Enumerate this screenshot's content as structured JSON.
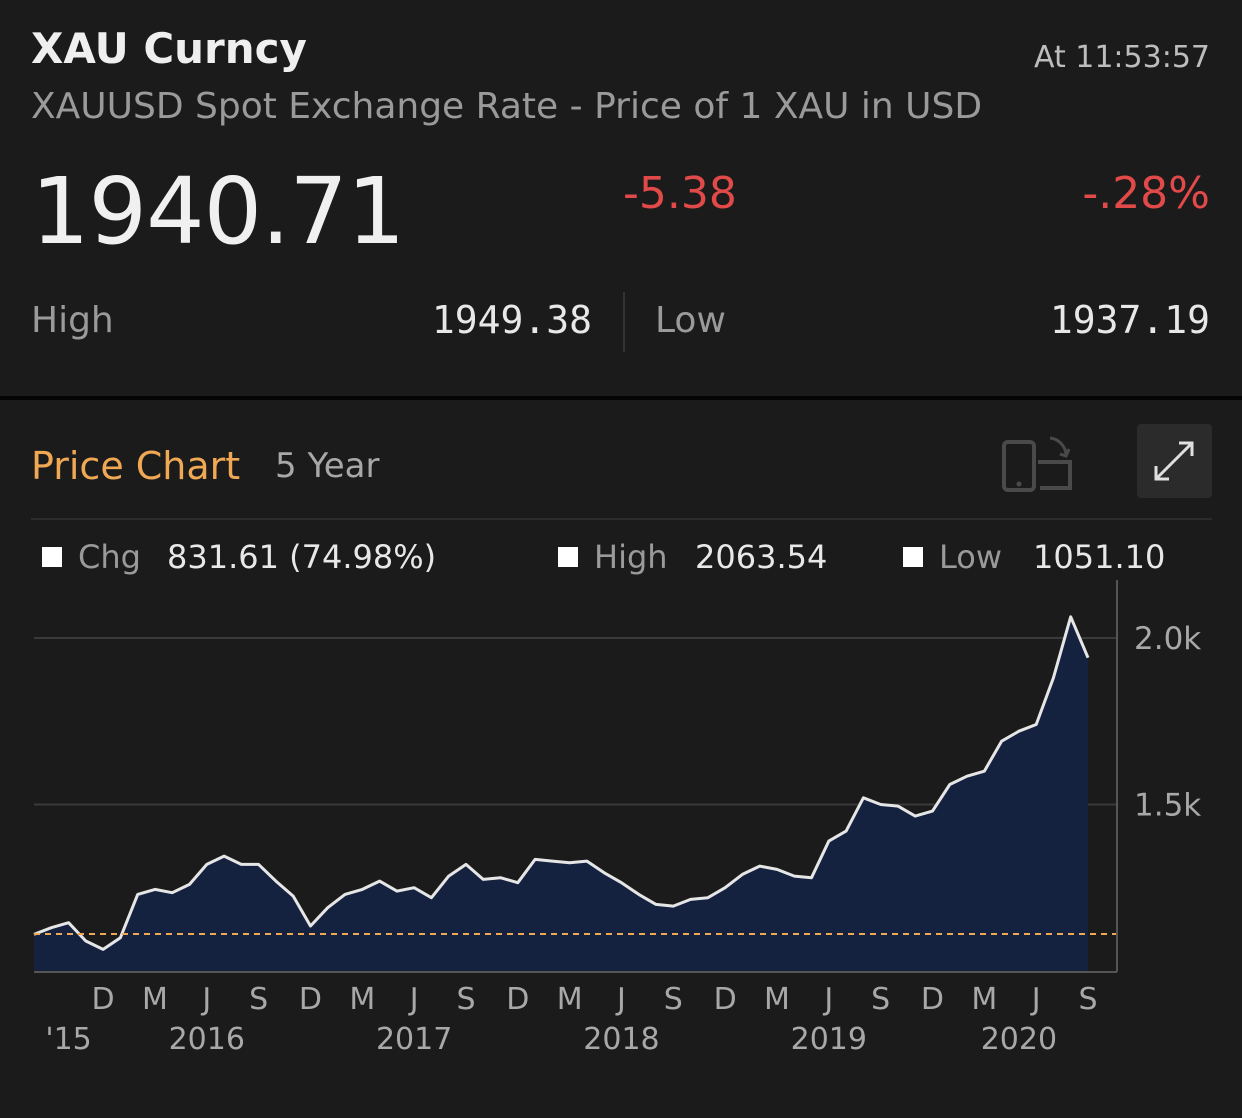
{
  "quote": {
    "ticker": "XAU Curncy",
    "time": "At 11:53:57",
    "description": "XAUUSD Spot Exchange Rate - Price of 1 XAU in USD",
    "last_price": "1940.71",
    "net_change": "-5.38",
    "pct_change": "-.28%",
    "high_label": "High",
    "high_value": "1949.38",
    "low_label": "Low",
    "low_value": "1937.19"
  },
  "chart_header": {
    "title": "Price Chart",
    "period": "5 Year",
    "rotate_icon": "rotate-device-icon",
    "expand_icon": "expand-icon"
  },
  "legend": {
    "chg_label": "Chg",
    "chg_value": "831.61 (74.98%)",
    "high_label": "High",
    "high_value": "2063.54",
    "low_label": "Low",
    "low_value": "1051.10"
  },
  "colors": {
    "accent": "#f0a855",
    "negative": "#e24a4a",
    "area_fill": "#14213f",
    "line": "#e6e6e6",
    "reference_line": "#f0a855"
  },
  "chart_data": {
    "type": "area",
    "x": [
      "2015-08",
      "2015-09",
      "2015-10",
      "2015-11",
      "2015-12",
      "2016-01",
      "2016-02",
      "2016-03",
      "2016-04",
      "2016-05",
      "2016-06",
      "2016-07",
      "2016-08",
      "2016-09",
      "2016-10",
      "2016-11",
      "2016-12",
      "2017-01",
      "2017-02",
      "2017-03",
      "2017-04",
      "2017-05",
      "2017-06",
      "2017-07",
      "2017-08",
      "2017-09",
      "2017-10",
      "2017-11",
      "2017-12",
      "2018-01",
      "2018-02",
      "2018-03",
      "2018-04",
      "2018-05",
      "2018-06",
      "2018-07",
      "2018-08",
      "2018-09",
      "2018-10",
      "2018-11",
      "2018-12",
      "2019-01",
      "2019-02",
      "2019-03",
      "2019-04",
      "2019-05",
      "2019-06",
      "2019-07",
      "2019-08",
      "2019-09",
      "2019-10",
      "2019-11",
      "2019-12",
      "2020-01",
      "2020-02",
      "2020-03",
      "2020-04",
      "2020-05",
      "2020-06",
      "2020-07",
      "2020-08",
      "2020-09"
    ],
    "values": [
      1110,
      1130,
      1145,
      1090,
      1065,
      1100,
      1230,
      1245,
      1235,
      1260,
      1320,
      1345,
      1320,
      1320,
      1270,
      1225,
      1135,
      1190,
      1230,
      1245,
      1270,
      1240,
      1250,
      1220,
      1285,
      1320,
      1275,
      1280,
      1265,
      1335,
      1330,
      1325,
      1330,
      1295,
      1265,
      1230,
      1200,
      1195,
      1215,
      1220,
      1250,
      1290,
      1315,
      1305,
      1285,
      1280,
      1390,
      1420,
      1520,
      1500,
      1495,
      1465,
      1480,
      1560,
      1585,
      1600,
      1690,
      1720,
      1740,
      1880,
      2063.54,
      1940.71
    ],
    "reference_value": 1111,
    "ylim": [
      1000,
      2150
    ],
    "yticks": [
      1500,
      2000
    ],
    "ytick_labels": [
      "1.5k",
      "2.0k"
    ],
    "xtick_months": [
      "D",
      "M",
      "J",
      "S",
      "D",
      "M",
      "J",
      "S",
      "D",
      "M",
      "J",
      "S",
      "D",
      "M",
      "J",
      "S",
      "D",
      "M",
      "J",
      "S"
    ],
    "xtick_month_dates": [
      "2015-12",
      "2016-03",
      "2016-06",
      "2016-09",
      "2016-12",
      "2017-03",
      "2017-06",
      "2017-09",
      "2017-12",
      "2018-03",
      "2018-06",
      "2018-09",
      "2018-12",
      "2019-03",
      "2019-06",
      "2019-09",
      "2019-12",
      "2020-03",
      "2020-06",
      "2020-09"
    ],
    "xtick_years": [
      "'15",
      "2016",
      "2017",
      "2018",
      "2019",
      "2020"
    ],
    "xtick_year_dates": [
      "2015-10",
      "2016-06",
      "2017-06",
      "2018-06",
      "2019-06",
      "2020-05"
    ],
    "grid": true,
    "legend_position": "top"
  }
}
